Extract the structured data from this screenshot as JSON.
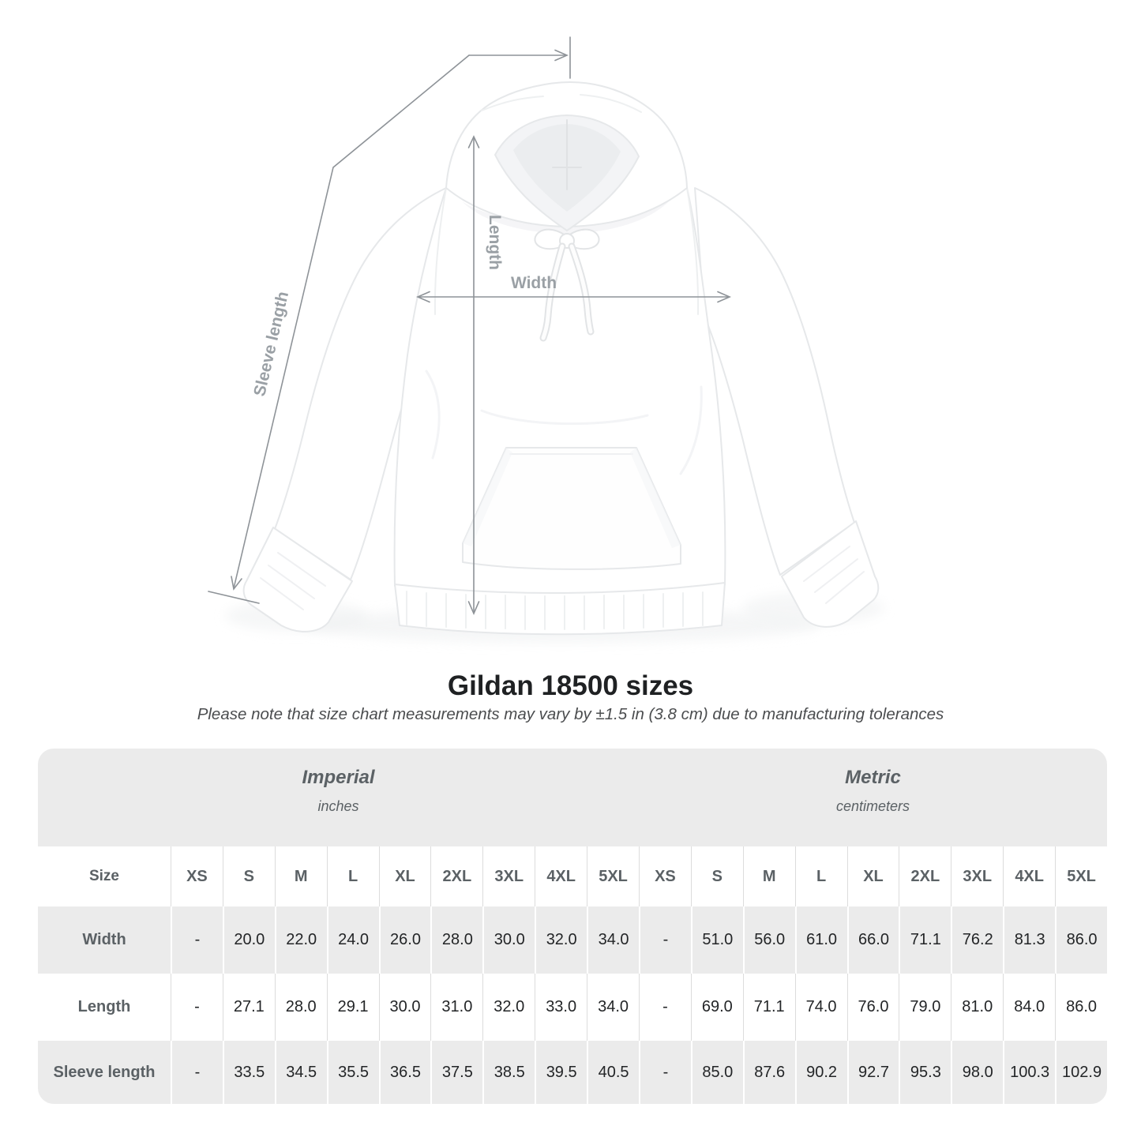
{
  "title": "Gildan 18500 sizes",
  "subtitle": "Please note that size chart measurements may vary by ±1.5 in (3.8 cm) due to manufacturing tolerances",
  "diagram": {
    "length_label": "Length",
    "width_label": "Width",
    "sleeve_label": "Sleeve length"
  },
  "table": {
    "groups": [
      {
        "label": "Imperial",
        "sublabel": "inches"
      },
      {
        "label": "Metric",
        "sublabel": "centimeters"
      }
    ],
    "size_header": "Size",
    "sizes": [
      "XS",
      "S",
      "M",
      "L",
      "XL",
      "2XL",
      "3XL",
      "4XL",
      "5XL"
    ],
    "rows": [
      {
        "label": "Width",
        "imperial": [
          "-",
          "20.0",
          "22.0",
          "24.0",
          "26.0",
          "28.0",
          "30.0",
          "32.0",
          "34.0"
        ],
        "metric": [
          "-",
          "51.0",
          "56.0",
          "61.0",
          "66.0",
          "71.1",
          "76.2",
          "81.3",
          "86.0"
        ]
      },
      {
        "label": "Length",
        "imperial": [
          "-",
          "27.1",
          "28.0",
          "29.1",
          "30.0",
          "31.0",
          "32.0",
          "33.0",
          "34.0"
        ],
        "metric": [
          "-",
          "69.0",
          "71.1",
          "74.0",
          "76.0",
          "79.0",
          "81.0",
          "84.0",
          "86.0"
        ]
      },
      {
        "label": "Sleeve length",
        "imperial": [
          "-",
          "33.5",
          "34.5",
          "35.5",
          "36.5",
          "37.5",
          "38.5",
          "39.5",
          "40.5"
        ],
        "metric": [
          "-",
          "85.0",
          "87.6",
          "90.2",
          "92.7",
          "95.3",
          "98.0",
          "100.3",
          "102.9"
        ]
      }
    ]
  },
  "colors": {
    "table_band": "#ebebeb",
    "separator_on_white": "#dcdcdc",
    "separator_on_gray": "#ffffff",
    "annotation_line": "#8e9398",
    "annotation_label": "#9aa0a5",
    "header_text": "#5b6165",
    "data_text": "#232527",
    "title_text": "#1f2123"
  }
}
